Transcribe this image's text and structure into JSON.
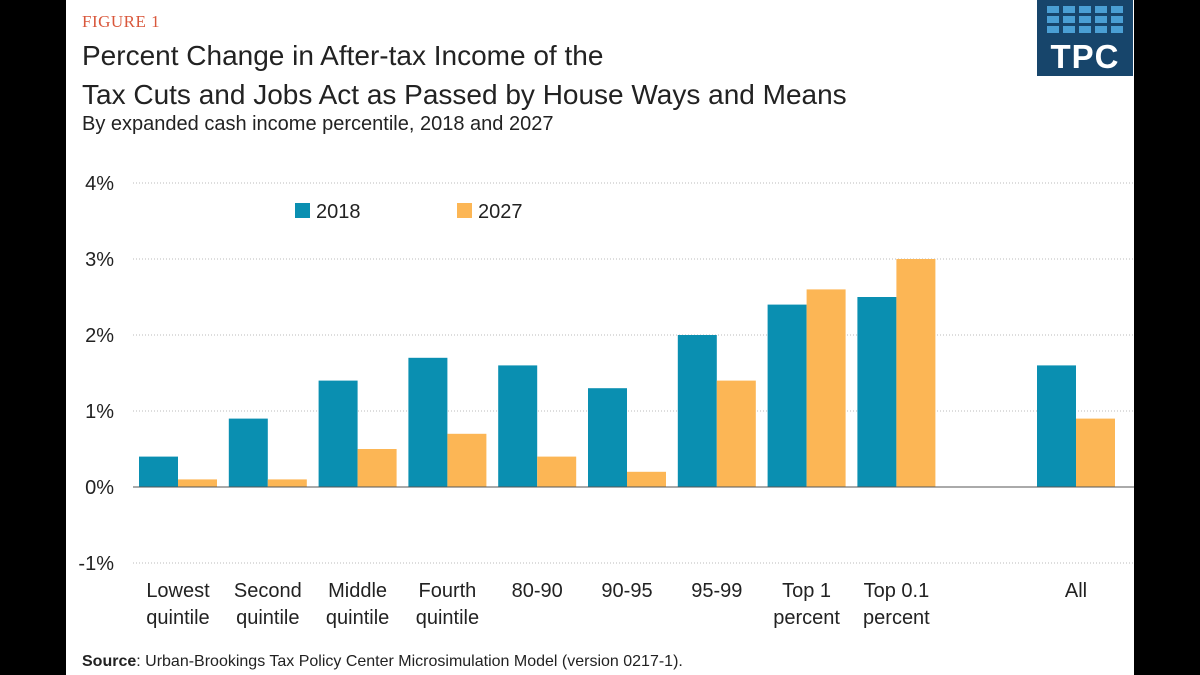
{
  "figure_label": "FIGURE 1",
  "title_line1": "Percent Change in After-tax Income of the",
  "title_line2": "Tax Cuts and Jobs Act as Passed by House Ways and Means",
  "subtitle": "By expanded cash income percentile, 2018 and 2027",
  "logo_text": "TPC",
  "source_label": "Source",
  "source_text": ": Urban-Brookings Tax Policy Center Microsimulation Model (version 0217-1).",
  "colors": {
    "series_2018": "#0a8fb1",
    "series_2027": "#fcb655",
    "grid": "#bbbbbb",
    "text": "#222222"
  },
  "chart_data": {
    "type": "bar",
    "title": "Percent Change in After-tax Income of the Tax Cuts and Jobs Act as Passed by House Ways and Means",
    "subtitle": "By expanded cash income percentile, 2018 and 2027",
    "categories": [
      [
        "Lowest",
        "quintile"
      ],
      [
        "Second",
        "quintile"
      ],
      [
        "Middle",
        "quintile"
      ],
      [
        "Fourth",
        "quintile"
      ],
      [
        "80-90"
      ],
      [
        "90-95"
      ],
      [
        "95-99"
      ],
      [
        "Top 1",
        "percent"
      ],
      [
        "Top 0.1",
        "percent"
      ],
      [],
      [
        "All"
      ]
    ],
    "series": [
      {
        "name": "2018",
        "values": [
          0.4,
          0.9,
          1.4,
          1.7,
          1.6,
          1.3,
          2.0,
          2.4,
          2.5,
          null,
          1.6
        ]
      },
      {
        "name": "2027",
        "values": [
          0.1,
          0.1,
          0.5,
          0.7,
          0.4,
          0.2,
          1.4,
          2.6,
          3.0,
          null,
          0.9
        ]
      }
    ],
    "y_ticks": [
      "4%",
      "3%",
      "2%",
      "1%",
      "0%",
      "-1%"
    ],
    "y_tick_values": [
      4,
      3,
      2,
      1,
      0,
      -1
    ],
    "ylim": [
      -1,
      4
    ],
    "ylabel": "",
    "xlabel": "",
    "grid": true,
    "legend_position": "top-left"
  }
}
